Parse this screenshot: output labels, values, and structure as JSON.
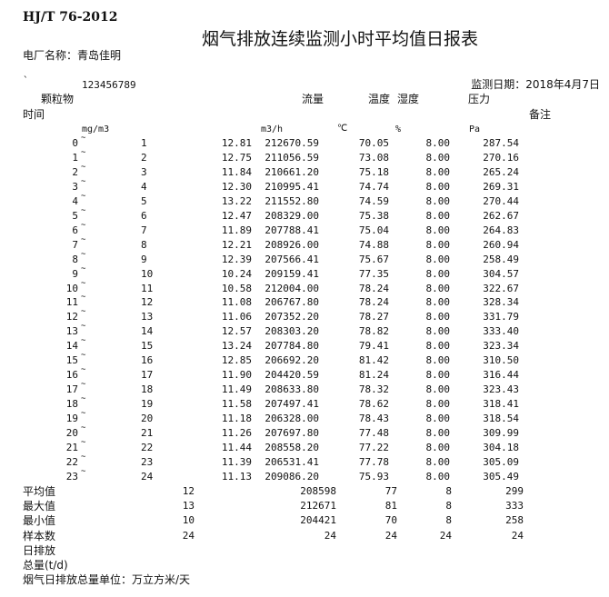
{
  "header": {
    "standard": "HJ/T 76-2012",
    "title": "烟气排放连续监测小时平均值日报表",
    "plant_name": "电厂名称：青岛佳明",
    "tick_mark": "`",
    "code": "123456789",
    "monitor_date": "监测日期：2018年4月7日"
  },
  "columns": {
    "particulate": "颗粒物",
    "flow": "流量",
    "temperature": "温度",
    "humidity": "湿度",
    "pressure": "压力",
    "time": "时间",
    "remark": "备注"
  },
  "units": {
    "particulate": "mg/m3",
    "flow": "m3/h",
    "temperature": "℃",
    "humidity": "%",
    "pressure": "Pa"
  },
  "range_separator": "~",
  "rows": [
    {
      "from": "0",
      "to": "1",
      "particulate": "12.81",
      "flow": "212670.59",
      "temperature": "70.05",
      "humidity": "8.00",
      "pressure": "287.54"
    },
    {
      "from": "1",
      "to": "2",
      "particulate": "12.75",
      "flow": "211056.59",
      "temperature": "73.08",
      "humidity": "8.00",
      "pressure": "270.16"
    },
    {
      "from": "2",
      "to": "3",
      "particulate": "11.84",
      "flow": "210661.20",
      "temperature": "75.18",
      "humidity": "8.00",
      "pressure": "265.24"
    },
    {
      "from": "3",
      "to": "4",
      "particulate": "12.30",
      "flow": "210995.41",
      "temperature": "74.74",
      "humidity": "8.00",
      "pressure": "269.31"
    },
    {
      "from": "4",
      "to": "5",
      "particulate": "13.22",
      "flow": "211552.80",
      "temperature": "74.59",
      "humidity": "8.00",
      "pressure": "270.44"
    },
    {
      "from": "5",
      "to": "6",
      "particulate": "12.47",
      "flow": "208329.00",
      "temperature": "75.38",
      "humidity": "8.00",
      "pressure": "262.67"
    },
    {
      "from": "6",
      "to": "7",
      "particulate": "11.89",
      "flow": "207788.41",
      "temperature": "75.04",
      "humidity": "8.00",
      "pressure": "264.83"
    },
    {
      "from": "7",
      "to": "8",
      "particulate": "12.21",
      "flow": "208926.00",
      "temperature": "74.88",
      "humidity": "8.00",
      "pressure": "260.94"
    },
    {
      "from": "8",
      "to": "9",
      "particulate": "12.39",
      "flow": "207566.41",
      "temperature": "75.67",
      "humidity": "8.00",
      "pressure": "258.49"
    },
    {
      "from": "9",
      "to": "10",
      "particulate": "10.24",
      "flow": "209159.41",
      "temperature": "77.35",
      "humidity": "8.00",
      "pressure": "304.57"
    },
    {
      "from": "10",
      "to": "11",
      "particulate": "10.58",
      "flow": "212004.00",
      "temperature": "78.24",
      "humidity": "8.00",
      "pressure": "322.67"
    },
    {
      "from": "11",
      "to": "12",
      "particulate": "11.08",
      "flow": "206767.80",
      "temperature": "78.24",
      "humidity": "8.00",
      "pressure": "328.34"
    },
    {
      "from": "12",
      "to": "13",
      "particulate": "11.06",
      "flow": "207352.20",
      "temperature": "78.27",
      "humidity": "8.00",
      "pressure": "331.79"
    },
    {
      "from": "13",
      "to": "14",
      "particulate": "12.57",
      "flow": "208303.20",
      "temperature": "78.82",
      "humidity": "8.00",
      "pressure": "333.40"
    },
    {
      "from": "14",
      "to": "15",
      "particulate": "13.24",
      "flow": "207784.80",
      "temperature": "79.41",
      "humidity": "8.00",
      "pressure": "323.34"
    },
    {
      "from": "15",
      "to": "16",
      "particulate": "12.85",
      "flow": "206692.20",
      "temperature": "81.42",
      "humidity": "8.00",
      "pressure": "310.50"
    },
    {
      "from": "16",
      "to": "17",
      "particulate": "11.90",
      "flow": "204420.59",
      "temperature": "81.24",
      "humidity": "8.00",
      "pressure": "316.44"
    },
    {
      "from": "17",
      "to": "18",
      "particulate": "11.49",
      "flow": "208633.80",
      "temperature": "78.32",
      "humidity": "8.00",
      "pressure": "323.43"
    },
    {
      "from": "18",
      "to": "19",
      "particulate": "11.58",
      "flow": "207497.41",
      "temperature": "78.62",
      "humidity": "8.00",
      "pressure": "318.41"
    },
    {
      "from": "19",
      "to": "20",
      "particulate": "11.18",
      "flow": "206328.00",
      "temperature": "78.43",
      "humidity": "8.00",
      "pressure": "318.54"
    },
    {
      "from": "20",
      "to": "21",
      "particulate": "11.26",
      "flow": "207697.80",
      "temperature": "77.48",
      "humidity": "8.00",
      "pressure": "309.99"
    },
    {
      "from": "21",
      "to": "22",
      "particulate": "11.44",
      "flow": "208558.20",
      "temperature": "77.22",
      "humidity": "8.00",
      "pressure": "304.18"
    },
    {
      "from": "22",
      "to": "23",
      "particulate": "11.39",
      "flow": "206531.41",
      "temperature": "77.78",
      "humidity": "8.00",
      "pressure": "305.09"
    },
    {
      "from": "23",
      "to": "24",
      "particulate": "11.13",
      "flow": "209086.20",
      "temperature": "75.93",
      "humidity": "8.00",
      "pressure": "305.49"
    }
  ],
  "summary": [
    {
      "label": "平均值",
      "particulate": "12",
      "flow": "208598",
      "temperature": "77",
      "humidity": "8",
      "pressure": "299"
    },
    {
      "label": "最大值",
      "particulate": "13",
      "flow": "212671",
      "temperature": "81",
      "humidity": "8",
      "pressure": "333"
    },
    {
      "label": "最小值",
      "particulate": "10",
      "flow": "204421",
      "temperature": "70",
      "humidity": "8",
      "pressure": "258"
    },
    {
      "label": "样本数",
      "particulate": "24",
      "flow": "24",
      "temperature": "24",
      "humidity": "24",
      "pressure": "24"
    }
  ],
  "footer": {
    "daily_emission_line1": "日排放",
    "daily_emission_line2": "总量(t/d)",
    "unit_note": "烟气日排放总量单位：万立方米/天"
  }
}
